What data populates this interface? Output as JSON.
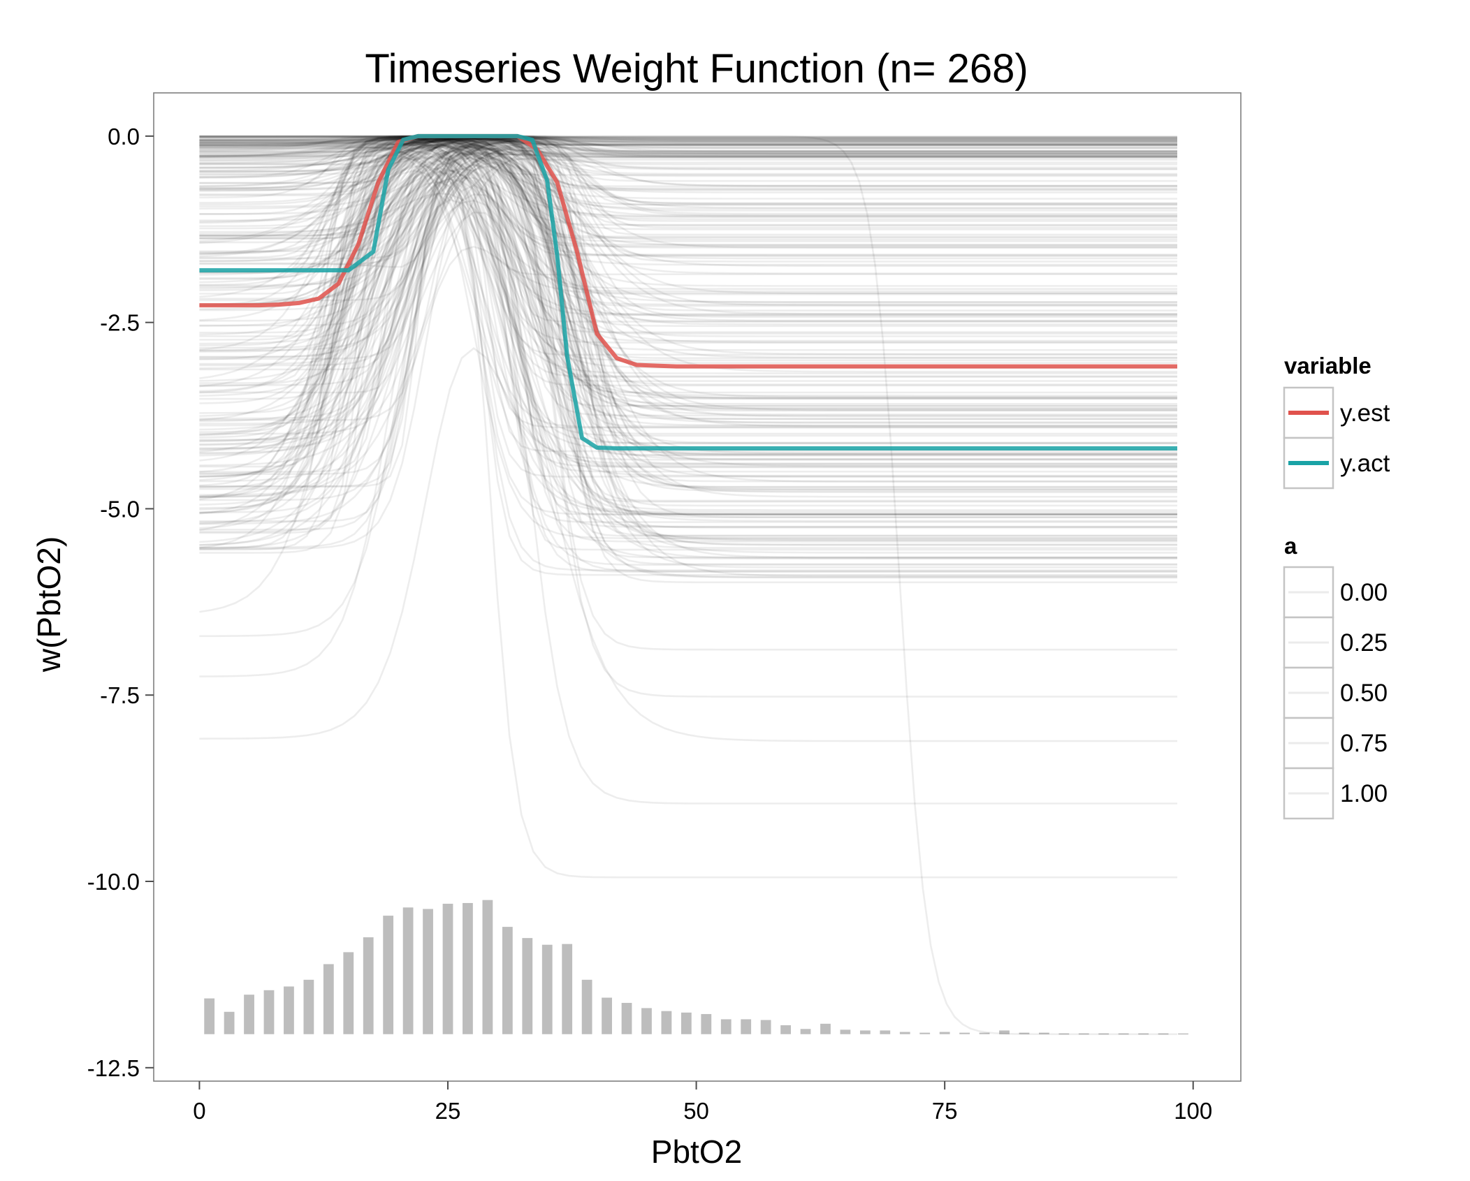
{
  "chart_data": {
    "type": "line",
    "title": "Timeseries Weight Function (n= 268)",
    "xlabel": "PbtO2",
    "ylabel": "w(PbtO2)",
    "xlim": [
      -4.6,
      104.8
    ],
    "ylim": [
      -12.68,
      0.58
    ],
    "x_ticks": [
      0,
      25,
      50,
      75,
      100
    ],
    "x_tick_labels": [
      "0",
      "25",
      "50",
      "75",
      "100"
    ],
    "y_ticks": [
      0,
      -2.5,
      -5,
      -7.5,
      -10,
      -12.5
    ],
    "y_tick_labels": [
      "0.0",
      "-2.5",
      "-5.0",
      "-7.5",
      "-10.0",
      "-12.5"
    ],
    "background": "#ffffff",
    "grid": false,
    "series": [
      {
        "name": "y.est",
        "color": "#e0524c",
        "x": [
          0,
          2,
          4,
          6,
          8,
          10,
          12,
          14,
          16,
          18,
          20,
          22,
          24,
          26,
          28,
          30,
          32,
          34,
          36,
          38,
          40,
          42,
          44,
          46,
          48,
          50,
          60,
          70,
          80,
          90,
          98.4
        ],
        "y": [
          -2.27,
          -2.27,
          -2.27,
          -2.27,
          -2.26,
          -2.24,
          -2.18,
          -1.98,
          -1.45,
          -0.62,
          -0.08,
          0,
          0,
          0,
          0,
          0,
          0,
          -0.18,
          -0.62,
          -1.55,
          -2.65,
          -2.98,
          -3.07,
          -3.08,
          -3.09,
          -3.09,
          -3.09,
          -3.09,
          -3.09,
          -3.09,
          -3.09
        ]
      },
      {
        "name": "y.act",
        "color": "#1aa3a6",
        "x": [
          0,
          4,
          8,
          12,
          15,
          17.5,
          19,
          20.5,
          22,
          24,
          26,
          28,
          30,
          32,
          33.5,
          35,
          36,
          37,
          38.5,
          40,
          42,
          50,
          60,
          70,
          80,
          90,
          98.4
        ],
        "y": [
          -1.8,
          -1.8,
          -1.8,
          -1.8,
          -1.8,
          -1.55,
          -0.45,
          -0.05,
          0,
          0,
          0,
          0,
          0,
          0,
          -0.05,
          -0.6,
          -1.6,
          -2.95,
          -4.05,
          -4.18,
          -4.19,
          -4.19,
          -4.19,
          -4.19,
          -4.19,
          -4.19,
          -4.19
        ]
      }
    ],
    "background_curves": {
      "count": 268,
      "color": "#000000",
      "opacity": 0.07,
      "peak_x": 25.5
    },
    "histogram": {
      "color": "#bdbdbd",
      "baseline": -12.05,
      "bin_width": 2,
      "bin_centers": [
        1,
        3,
        5,
        7,
        9,
        11,
        13,
        15,
        17,
        19,
        21,
        23,
        25,
        27,
        29,
        31,
        33,
        35,
        37,
        39,
        41,
        43,
        45,
        47,
        49,
        51,
        53,
        55,
        57,
        59,
        61,
        63,
        65,
        67,
        69,
        71,
        73,
        75,
        77,
        79,
        81,
        83,
        85,
        87,
        89,
        91,
        93,
        95,
        97,
        99
      ],
      "tops": [
        -11.57,
        -11.75,
        -11.52,
        -11.46,
        -11.41,
        -11.32,
        -11.11,
        -10.95,
        -10.75,
        -10.46,
        -10.35,
        -10.37,
        -10.3,
        -10.29,
        -10.25,
        -10.61,
        -10.76,
        -10.85,
        -10.84,
        -11.32,
        -11.56,
        -11.63,
        -11.7,
        -11.74,
        -11.76,
        -11.78,
        -11.85,
        -11.85,
        -11.86,
        -11.93,
        -11.98,
        -11.91,
        -11.99,
        -12.0,
        -12.0,
        -12.02,
        -12.03,
        -12.02,
        -12.03,
        -12.03,
        -12.0,
        -12.03,
        -12.03,
        -12.04,
        -12.04,
        -12.04,
        -12.04,
        -12.04,
        -12.04,
        -12.04
      ]
    },
    "legend": {
      "placement": "right",
      "variable": {
        "title": "variable",
        "items": [
          {
            "label": "y.est",
            "color": "#e0524c"
          },
          {
            "label": "y.act",
            "color": "#1aa3a6"
          }
        ]
      },
      "alpha": {
        "title": "a",
        "items": [
          "0.00",
          "0.25",
          "0.50",
          "0.75",
          "1.00"
        ]
      }
    }
  }
}
